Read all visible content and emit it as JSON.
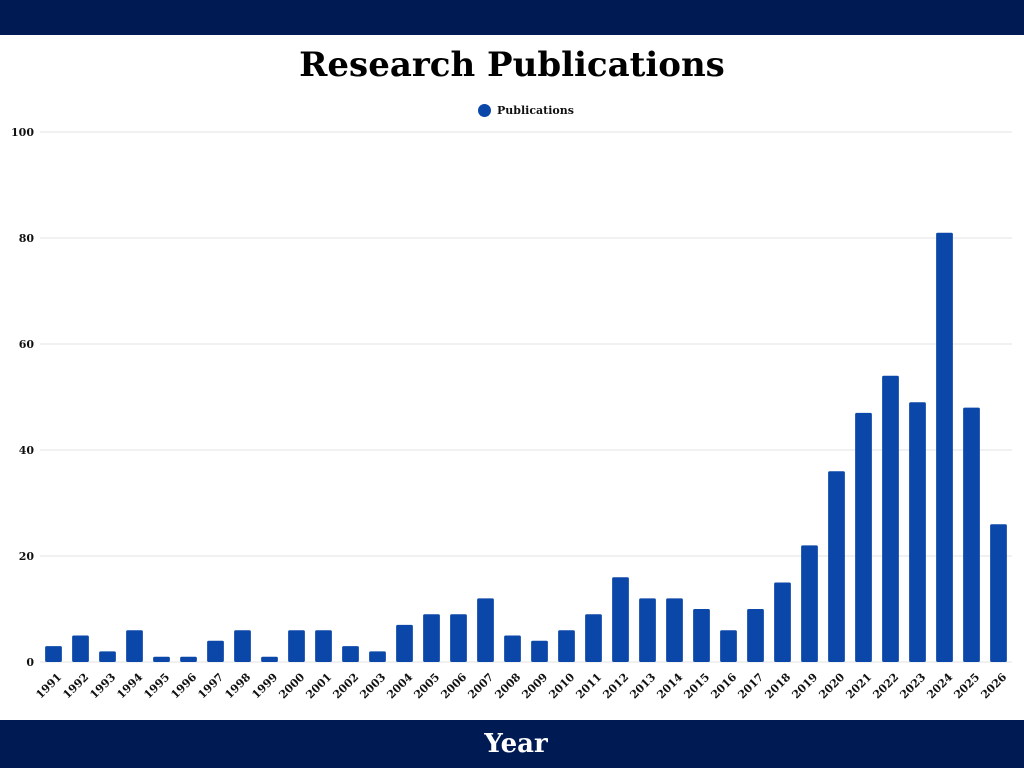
{
  "colors": {
    "band": "#001b54",
    "bar": "#0b47a8",
    "grid": "#e3e3e3",
    "tick_text": "#111111"
  },
  "chart_data": {
    "type": "bar",
    "title": "Research Publications",
    "xlabel": "Year",
    "ylabel": "",
    "ylim": [
      0,
      100
    ],
    "yticks": [
      0,
      20,
      40,
      60,
      80,
      100
    ],
    "grid": true,
    "legend": "top-center",
    "categories": [
      "1991",
      "1992",
      "1993",
      "1994",
      "1995",
      "1996",
      "1997",
      "1998",
      "1999",
      "2000",
      "2001",
      "2002",
      "2003",
      "2004",
      "2005",
      "2006",
      "2007",
      "2008",
      "2009",
      "2010",
      "2011",
      "2012",
      "2013",
      "2014",
      "2015",
      "2016",
      "2017",
      "2018",
      "2019",
      "2020",
      "2021",
      "2022",
      "2023",
      "2024",
      "2025",
      "2026"
    ],
    "series": [
      {
        "name": "Publications",
        "values": [
          3,
          5,
          2,
          6,
          1,
          1,
          4,
          6,
          1,
          6,
          6,
          3,
          2,
          7,
          9,
          9,
          12,
          5,
          4,
          6,
          9,
          16,
          12,
          12,
          10,
          6,
          10,
          15,
          22,
          36,
          47,
          54,
          49,
          81,
          48,
          26
        ]
      }
    ]
  }
}
